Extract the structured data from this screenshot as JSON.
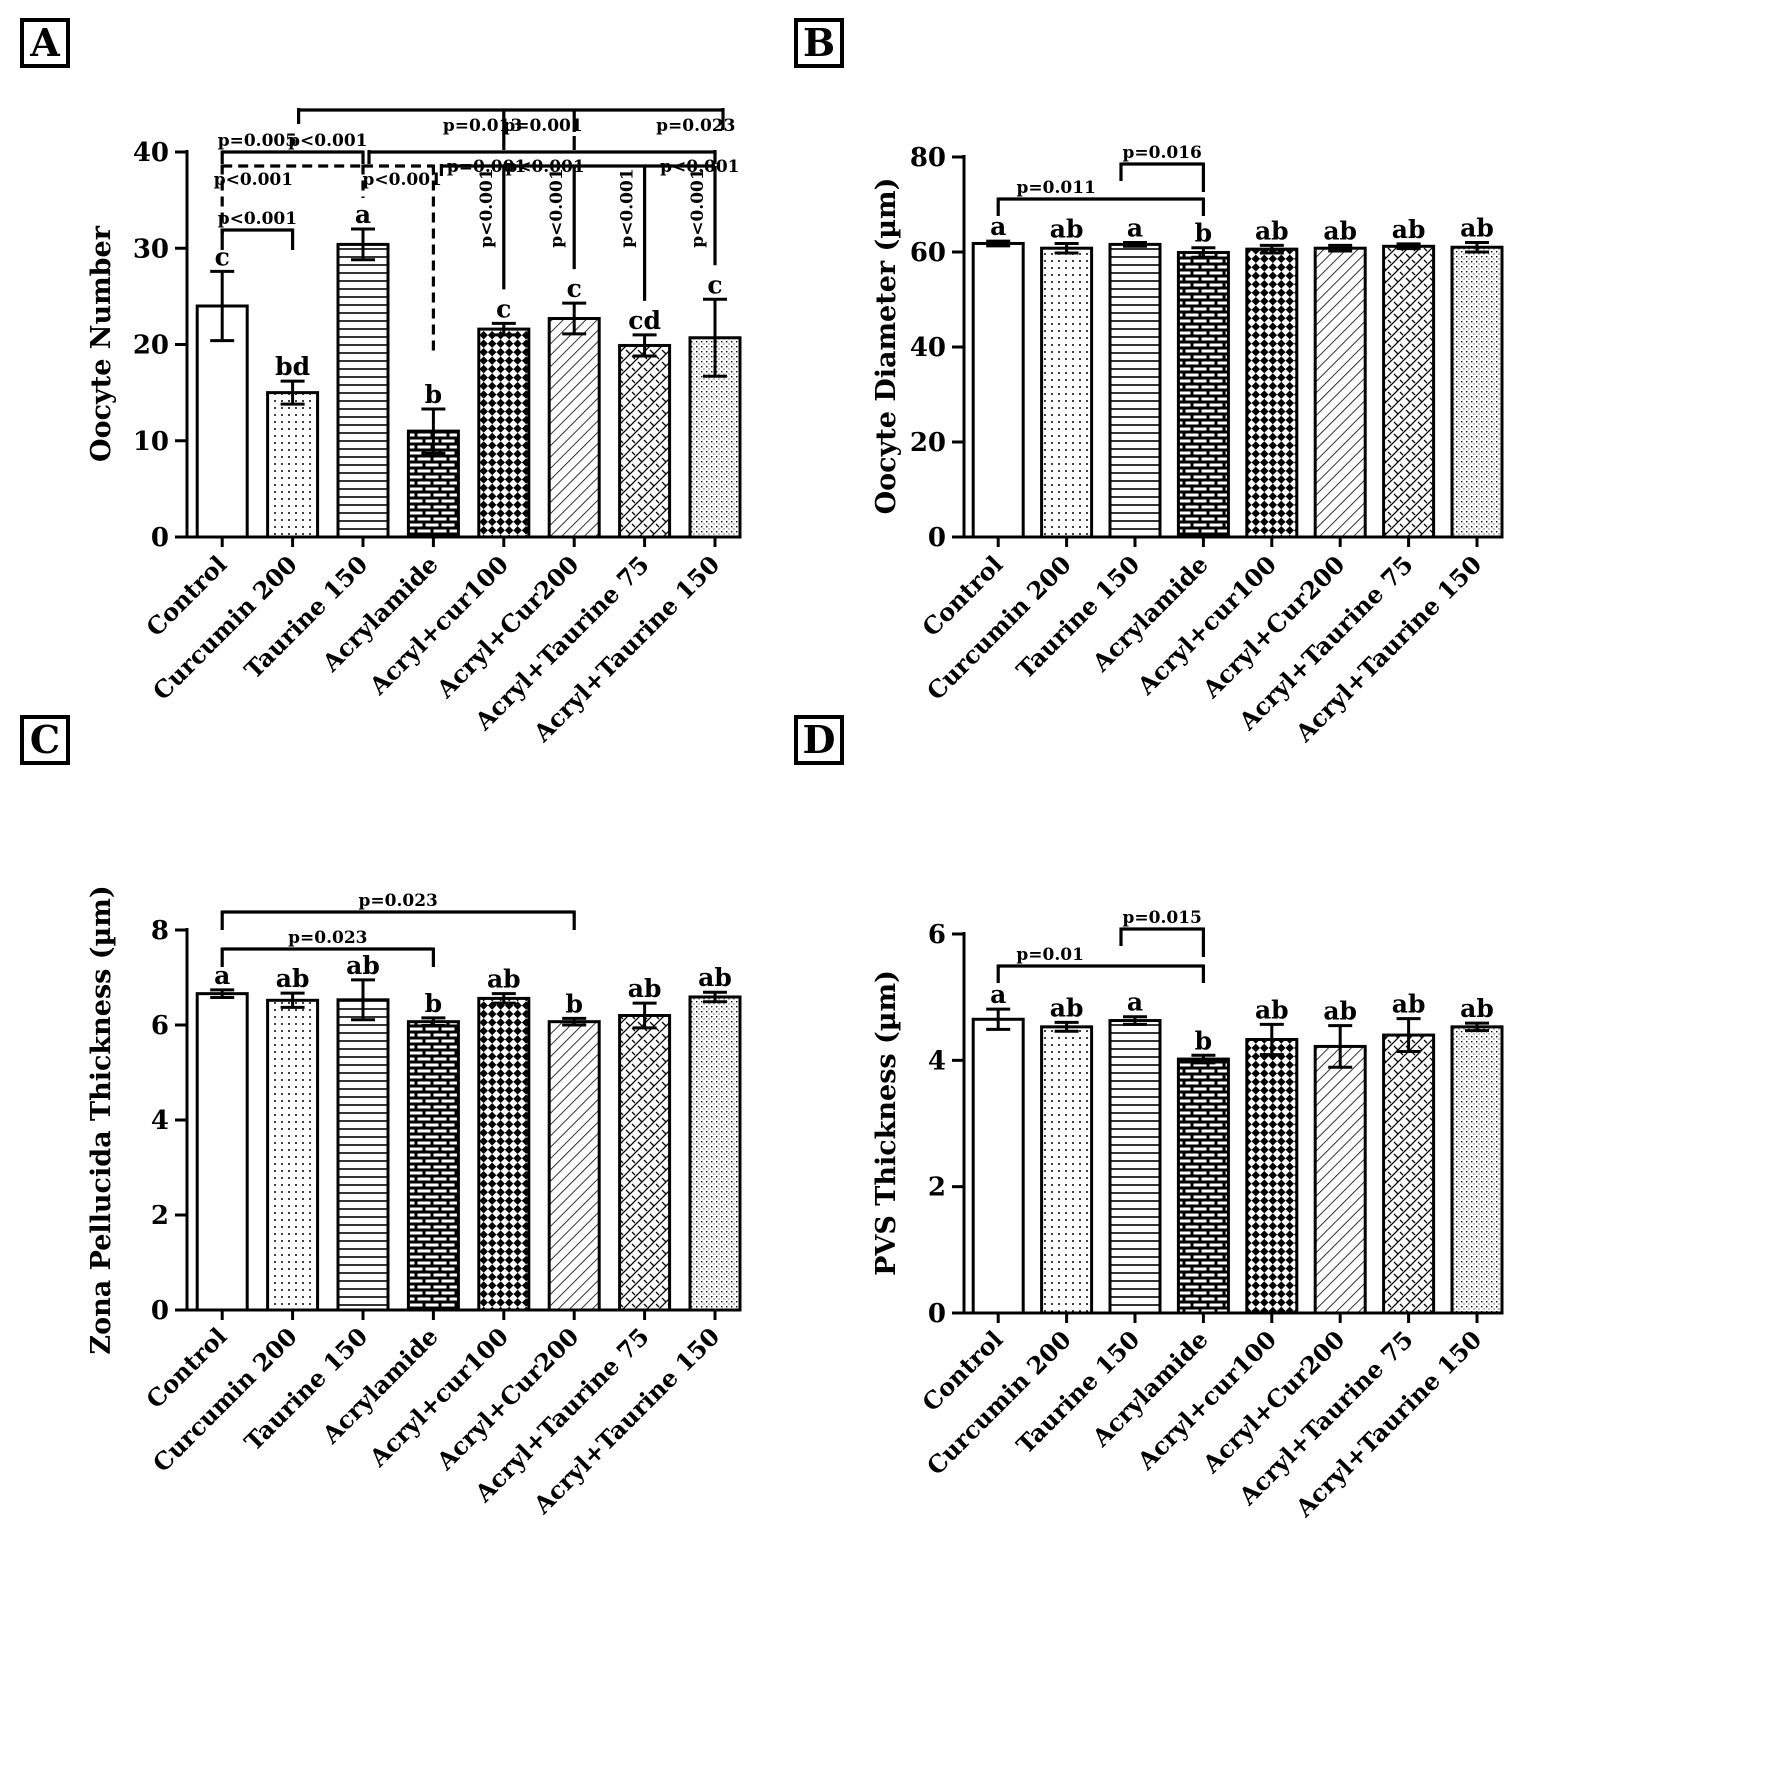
{
  "categories": [
    "Control",
    "Curcumin 200",
    "Taurine 150",
    "Acrylamide",
    "Acryl+cur100",
    "Acryl+Cur200",
    "Acryl+Taurine 75",
    "Acryl+Taurine 150"
  ],
  "chart_data": [
    {
      "panel": "A",
      "type": "bar",
      "ylabel": "Oocyte Number",
      "ylim": [
        0,
        40
      ],
      "yticks": [
        0,
        10,
        20,
        30,
        40
      ],
      "values": [
        24.0,
        15.0,
        30.4,
        11.0,
        21.6,
        22.7,
        19.9,
        20.7
      ],
      "errors": [
        3.6,
        1.2,
        1.6,
        2.3,
        0.6,
        1.6,
        1.1,
        4.0
      ],
      "letters": [
        "c",
        "bd",
        "a",
        "b",
        "c",
        "c",
        "cd",
        "c"
      ],
      "comparisons": [
        {
          "label": "p<0.001",
          "from": 0,
          "to": 1,
          "style": "solid"
        },
        {
          "label": "p<0.001",
          "from": 0,
          "to": 2,
          "style": "dashed"
        },
        {
          "label": "p<0.001",
          "from": 2,
          "to": 3,
          "style": "dashed"
        },
        {
          "label": "p<0.001",
          "from": 3,
          "to": 4,
          "style": "vertical"
        },
        {
          "label": "p<0.001",
          "from": 3,
          "to": 5,
          "style": "vertical"
        },
        {
          "label": "p<0.001",
          "from": 3,
          "to": 6,
          "style": "vertical"
        },
        {
          "label": "p<0.001",
          "from": 3,
          "to": 7,
          "style": "vertical"
        },
        {
          "label": "p=0.005",
          "from": 0,
          "to": 1,
          "style": "solid"
        },
        {
          "label": "p<0.001",
          "from": 1,
          "to": 2,
          "style": "solid"
        },
        {
          "label": "p=0.001",
          "from": 2,
          "to": 4,
          "style": "solid"
        },
        {
          "label": "p<0.001",
          "from": 2,
          "to": 5,
          "style": "solid"
        },
        {
          "label": "p<0.001",
          "from": 2,
          "to": 7,
          "style": "solid"
        },
        {
          "label": "p=0.013",
          "from": 1,
          "to": 4,
          "style": "solid"
        },
        {
          "label": "p=0.001",
          "from": 1,
          "to": 5,
          "style": "solid"
        },
        {
          "label": "p=0.023",
          "from": 1,
          "to": 7,
          "style": "solid"
        }
      ]
    },
    {
      "panel": "B",
      "type": "bar",
      "ylabel": "Oocyte Diameter (µm)",
      "ylim": [
        0,
        80
      ],
      "yticks": [
        0,
        20,
        40,
        60,
        80
      ],
      "values": [
        61.8,
        60.8,
        61.6,
        59.9,
        60.6,
        60.8,
        61.2,
        61.0
      ],
      "errors": [
        0.5,
        1.0,
        0.4,
        1.0,
        0.8,
        0.6,
        0.5,
        1.0
      ],
      "letters": [
        "a",
        "ab",
        "a",
        "b",
        "ab",
        "ab",
        "ab",
        "ab"
      ],
      "comparisons": [
        {
          "label": "p=0.011",
          "from": 0,
          "to": 3,
          "style": "solid"
        },
        {
          "label": "p=0.016",
          "from": 2,
          "to": 3,
          "style": "solid"
        }
      ]
    },
    {
      "panel": "C",
      "type": "bar",
      "ylabel": "Zona Pellucida Thickness (µm)",
      "ylim": [
        0,
        8
      ],
      "yticks": [
        0,
        2,
        4,
        6,
        8
      ],
      "values": [
        6.66,
        6.52,
        6.53,
        6.07,
        6.56,
        6.07,
        6.2,
        6.59
      ],
      "errors": [
        0.08,
        0.15,
        0.42,
        0.08,
        0.1,
        0.07,
        0.26,
        0.1
      ],
      "letters": [
        "a",
        "ab",
        "ab",
        "b",
        "ab",
        "b",
        "ab",
        "ab"
      ],
      "comparisons": [
        {
          "label": "p=0.023",
          "from": 0,
          "to": 3,
          "style": "solid"
        },
        {
          "label": "p=0.023",
          "from": 0,
          "to": 5,
          "style": "solid"
        }
      ]
    },
    {
      "panel": "D",
      "type": "bar",
      "ylabel": "PVS Thickness (µm)",
      "ylim": [
        0,
        6
      ],
      "yticks": [
        0,
        2,
        4,
        6
      ],
      "values": [
        4.65,
        4.53,
        4.63,
        4.02,
        4.33,
        4.22,
        4.4,
        4.53
      ],
      "errors": [
        0.16,
        0.07,
        0.06,
        0.06,
        0.24,
        0.33,
        0.26,
        0.06
      ],
      "letters": [
        "a",
        "ab",
        "a",
        "b",
        "ab",
        "ab",
        "ab",
        "ab"
      ],
      "comparisons": [
        {
          "label": "p=0.01",
          "from": 0,
          "to": 3,
          "style": "solid"
        },
        {
          "label": "p=0.015",
          "from": 2,
          "to": 3,
          "style": "solid"
        }
      ]
    }
  ]
}
